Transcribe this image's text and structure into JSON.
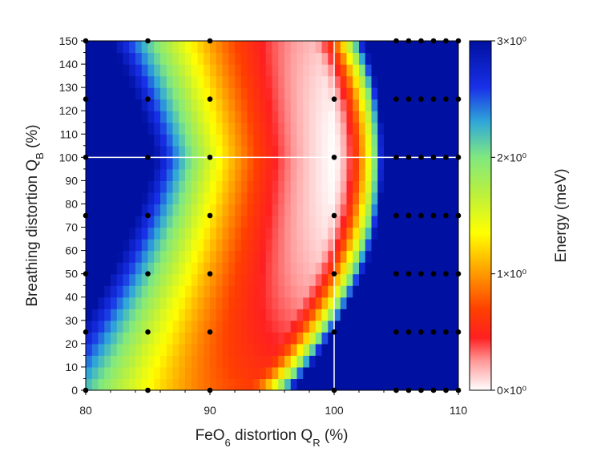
{
  "chart_data": {
    "type": "heatmap",
    "title": "",
    "xlabel": {
      "base": "FeO",
      "sub1": "6",
      "mid": " distortion Q",
      "sub2": "R",
      "suffix": " (%)"
    },
    "ylabel": {
      "base": "Breathing distortion Q",
      "sub": "B",
      "suffix": " (%)"
    },
    "xlim": [
      80,
      110
    ],
    "ylim": [
      0,
      150
    ],
    "x_ticks": [
      "80",
      "90",
      "100",
      "110"
    ],
    "y_ticks": [
      "0",
      "10",
      "20",
      "30",
      "40",
      "50",
      "60",
      "70",
      "80",
      "90",
      "100",
      "110",
      "120",
      "130",
      "140",
      "150"
    ],
    "colorbar": {
      "label": "Energy (meV)",
      "range": [
        0,
        3
      ],
      "ticks": [
        {
          "value": 0,
          "label": "0×10⁰"
        },
        {
          "value": 1,
          "label": "1×10⁰"
        },
        {
          "value": 2,
          "label": "2×10⁰"
        },
        {
          "value": 3,
          "label": "3×10⁰"
        }
      ],
      "stops": [
        {
          "v": 0.0,
          "color": "#ffffff"
        },
        {
          "v": 0.25,
          "color": "#ff9999"
        },
        {
          "v": 0.45,
          "color": "#ff2020"
        },
        {
          "v": 0.7,
          "color": "#ff4000"
        },
        {
          "v": 1.0,
          "color": "#ff9900"
        },
        {
          "v": 1.35,
          "color": "#ffff00"
        },
        {
          "v": 1.7,
          "color": "#b8f040"
        },
        {
          "v": 2.0,
          "color": "#80e880"
        },
        {
          "v": 2.3,
          "color": "#30a8d8"
        },
        {
          "v": 2.6,
          "color": "#1830e8"
        },
        {
          "v": 3.0,
          "color": "#0010a0"
        }
      ]
    },
    "crosshair": {
      "x": 100,
      "y": 100
    },
    "sample_points": {
      "x": [
        80,
        85,
        90,
        100,
        105,
        106,
        107,
        108,
        109,
        110
      ],
      "y": [
        0,
        25,
        50,
        75,
        100,
        125,
        150
      ],
      "skip": [
        [
          100,
          150
        ]
      ]
    },
    "grid_resolution": [
      60,
      30
    ]
  }
}
